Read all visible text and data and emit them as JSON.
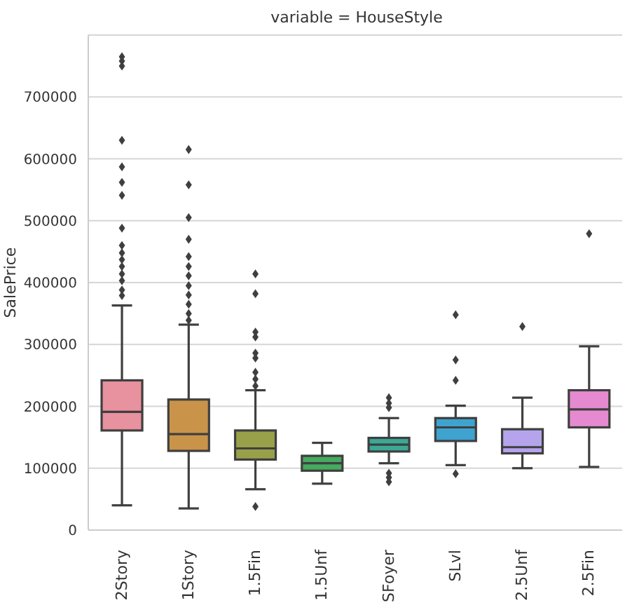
{
  "chart_data": {
    "type": "box",
    "title": "variable = HouseStyle",
    "ylabel": "SalePrice",
    "categories": [
      "2Story",
      "1Story",
      "1.5Fin",
      "1.5Unf",
      "SFoyer",
      "SLvl",
      "2.5Unf",
      "2.5Fin"
    ],
    "colors": [
      "#e8919f",
      "#c99449",
      "#98a149",
      "#45ab5f",
      "#3aa996",
      "#3fa3cf",
      "#b5a4ec",
      "#e58ad0"
    ],
    "boxes": [
      {
        "low": 40000,
        "q1": 161000,
        "median": 191000,
        "q3": 242000,
        "high": 363000,
        "outliers": [
          765000,
          758000,
          750000,
          630000,
          587000,
          562000,
          541000,
          488000,
          460000,
          448000,
          437000,
          426000,
          414000,
          403000,
          388000,
          379000
        ]
      },
      {
        "low": 35000,
        "q1": 128000,
        "median": 155000,
        "q3": 211000,
        "high": 332000,
        "outliers": [
          615000,
          558000,
          505000,
          470000,
          442000,
          426000,
          411000,
          395000,
          380000,
          365000,
          350000,
          339000
        ]
      },
      {
        "low": 66000,
        "q1": 114000,
        "median": 132000,
        "q3": 161000,
        "high": 226000,
        "outliers": [
          414000,
          382000,
          320000,
          312000,
          286000,
          278000,
          255000,
          244000,
          233000,
          38000
        ]
      },
      {
        "low": 75000,
        "q1": 96000,
        "median": 108000,
        "q3": 120000,
        "high": 141000
      },
      {
        "low": 108000,
        "q1": 127000,
        "median": 138000,
        "q3": 149000,
        "high": 181000,
        "outliers": [
          214000,
          205000,
          198000,
          92000,
          85000,
          78000
        ]
      },
      {
        "low": 105000,
        "q1": 144000,
        "median": 166000,
        "q3": 181000,
        "high": 201000,
        "outliers": [
          348000,
          275000,
          242000,
          91000
        ]
      },
      {
        "low": 100000,
        "q1": 124000,
        "median": 134000,
        "q3": 163000,
        "high": 214000,
        "outliers": [
          329000
        ]
      },
      {
        "low": 102000,
        "q1": 166000,
        "median": 195000,
        "q3": 226000,
        "high": 297000,
        "outliers": [
          479000
        ]
      }
    ],
    "ylim": [
      0,
      800000
    ],
    "yticks": [
      0,
      100000,
      200000,
      300000,
      400000,
      500000,
      600000,
      700000
    ],
    "grid": "y",
    "marker": "diamond",
    "legend": false
  }
}
